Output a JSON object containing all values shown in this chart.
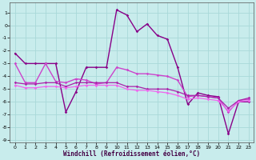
{
  "xlabel": "Windchill (Refroidissement éolien,°C)",
  "background_color": "#c8ecec",
  "grid_color": "#a8d8d8",
  "xlim": [
    -0.5,
    23.5
  ],
  "ylim": [
    -9.2,
    1.8
  ],
  "yticks": [
    1,
    0,
    -1,
    -2,
    -3,
    -4,
    -5,
    -6,
    -7,
    -8,
    -9
  ],
  "xticks": [
    0,
    1,
    2,
    3,
    4,
    5,
    6,
    7,
    8,
    9,
    10,
    11,
    12,
    13,
    14,
    15,
    16,
    17,
    18,
    19,
    20,
    21,
    22,
    23
  ],
  "series": [
    {
      "x": [
        0,
        1,
        2,
        3,
        4,
        5,
        6,
        7,
        8,
        9,
        10,
        11,
        12,
        13,
        14,
        15,
        16,
        17,
        18,
        19,
        20,
        21,
        22,
        23
      ],
      "y": [
        -2.2,
        -3.0,
        -3.0,
        -3.0,
        -3.0,
        -6.8,
        -5.2,
        -3.3,
        -3.3,
        -3.3,
        1.2,
        0.8,
        -0.5,
        0.1,
        -0.8,
        -1.1,
        -3.3,
        -6.2,
        -5.3,
        -5.5,
        -5.6,
        -8.5,
        -6.0,
        -6.0
      ],
      "color": "#880088",
      "lw": 1.0
    },
    {
      "x": [
        0,
        1,
        2,
        3,
        4,
        5,
        6,
        7,
        8,
        9,
        10,
        11,
        12,
        13,
        14,
        15,
        16,
        17,
        18,
        19,
        20,
        21,
        22,
        23
      ],
      "y": [
        -3.0,
        -4.5,
        -4.5,
        -3.0,
        -4.4,
        -4.5,
        -4.2,
        -4.3,
        -4.6,
        -4.5,
        -3.3,
        -3.5,
        -3.8,
        -3.8,
        -3.9,
        -4.0,
        -4.3,
        -5.6,
        -5.5,
        -5.6,
        -5.7,
        -6.8,
        -5.9,
        -5.8
      ],
      "color": "#cc44cc",
      "lw": 1.0
    },
    {
      "x": [
        0,
        1,
        2,
        3,
        4,
        5,
        6,
        7,
        8,
        9,
        10,
        11,
        12,
        13,
        14,
        15,
        16,
        17,
        18,
        19,
        20,
        21,
        22,
        23
      ],
      "y": [
        -4.5,
        -4.6,
        -4.6,
        -4.5,
        -4.5,
        -4.8,
        -4.5,
        -4.5,
        -4.5,
        -4.5,
        -4.5,
        -4.8,
        -4.8,
        -5.0,
        -5.0,
        -5.0,
        -5.2,
        -5.5,
        -5.5,
        -5.6,
        -5.7,
        -6.5,
        -5.9,
        -5.7
      ],
      "color": "#aa22aa",
      "lw": 0.9
    },
    {
      "x": [
        0,
        1,
        2,
        3,
        4,
        5,
        6,
        7,
        8,
        9,
        10,
        11,
        12,
        13,
        14,
        15,
        16,
        17,
        18,
        19,
        20,
        21,
        22,
        23
      ],
      "y": [
        -4.7,
        -4.9,
        -4.9,
        -4.8,
        -4.8,
        -4.9,
        -4.8,
        -4.7,
        -4.7,
        -4.7,
        -4.7,
        -5.0,
        -5.1,
        -5.1,
        -5.2,
        -5.3,
        -5.5,
        -5.8,
        -5.7,
        -5.8,
        -5.9,
        -6.7,
        -6.0,
        -5.9
      ],
      "color": "#ee66ee",
      "lw": 0.9
    }
  ]
}
